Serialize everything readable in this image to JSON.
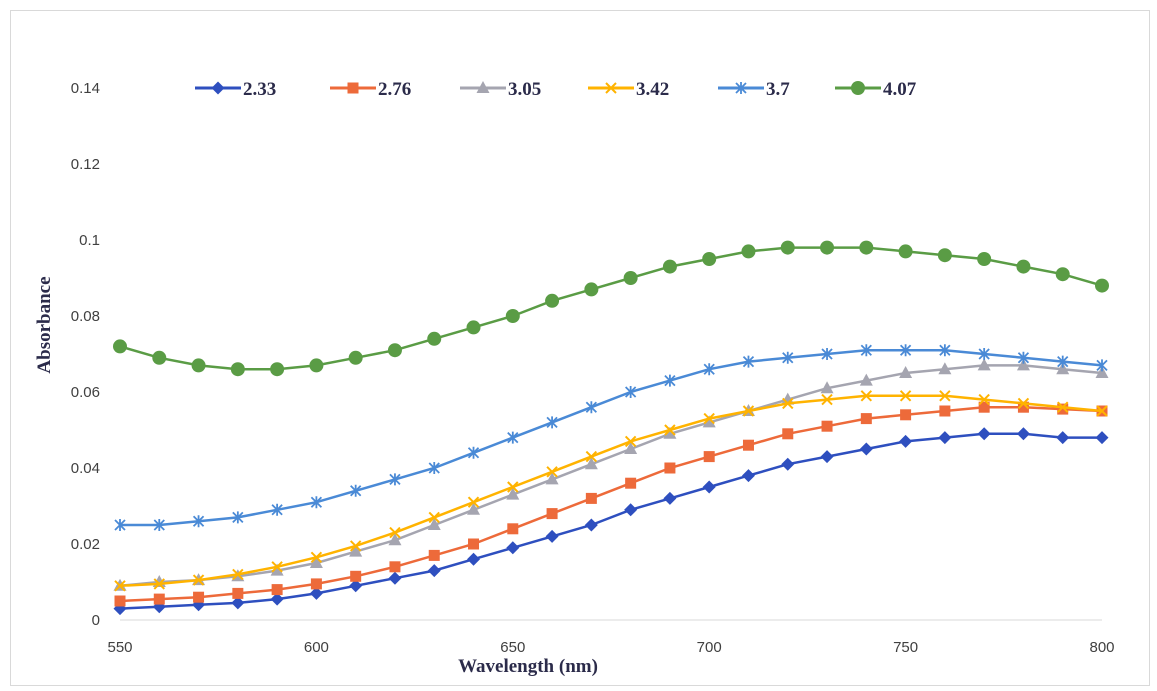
{
  "chart_data": {
    "type": "scatter",
    "title": "",
    "xlabel": "Wavelength (nm)",
    "ylabel": "Absorbance",
    "xlim": [
      550,
      800
    ],
    "ylim": [
      0,
      0.14
    ],
    "xticks": [
      550,
      600,
      650,
      700,
      750,
      800
    ],
    "xtick_labels": [
      "550",
      "600",
      "650",
      "700",
      "750",
      "800"
    ],
    "yticks": [
      0,
      0.02,
      0.04,
      0.06,
      0.08,
      0.1,
      0.12,
      0.14
    ],
    "ytick_labels": [
      "0",
      "0.02",
      "0.04",
      "0.06",
      "0.08",
      "0.1",
      "0.12",
      "0.14"
    ],
    "grid": false,
    "legend_position": "top",
    "x": [
      550,
      560,
      570,
      580,
      590,
      600,
      610,
      620,
      630,
      640,
      650,
      660,
      670,
      680,
      690,
      700,
      710,
      720,
      730,
      740,
      750,
      760,
      770,
      780,
      790,
      800
    ],
    "series": [
      {
        "name": "2.33",
        "color": "#2e4fbf",
        "marker": "diamond",
        "values": [
          0.003,
          0.0035,
          0.004,
          0.0045,
          0.0055,
          0.007,
          0.009,
          0.011,
          0.013,
          0.016,
          0.019,
          0.022,
          0.025,
          0.029,
          0.032,
          0.035,
          0.038,
          0.041,
          0.043,
          0.045,
          0.047,
          0.048,
          0.049,
          0.049,
          0.048,
          0.048
        ]
      },
      {
        "name": "2.76",
        "color": "#ed6a3a",
        "marker": "square",
        "values": [
          0.005,
          0.0055,
          0.006,
          0.007,
          0.008,
          0.0095,
          0.0115,
          0.014,
          0.017,
          0.02,
          0.024,
          0.028,
          0.032,
          0.036,
          0.04,
          0.043,
          0.046,
          0.049,
          0.051,
          0.053,
          0.054,
          0.055,
          0.056,
          0.056,
          0.0555,
          0.055
        ]
      },
      {
        "name": "3.05",
        "color": "#a5a5b0",
        "marker": "triangle",
        "values": [
          0.009,
          0.01,
          0.0105,
          0.0115,
          0.013,
          0.015,
          0.018,
          0.021,
          0.025,
          0.029,
          0.033,
          0.037,
          0.041,
          0.045,
          0.049,
          0.052,
          0.055,
          0.058,
          0.061,
          0.063,
          0.065,
          0.066,
          0.067,
          0.067,
          0.066,
          0.065
        ]
      },
      {
        "name": "3.42",
        "color": "#ffb300",
        "marker": "x",
        "values": [
          0.009,
          0.0095,
          0.0105,
          0.012,
          0.014,
          0.0165,
          0.0195,
          0.023,
          0.027,
          0.031,
          0.035,
          0.039,
          0.043,
          0.047,
          0.05,
          0.053,
          0.055,
          0.057,
          0.058,
          0.059,
          0.059,
          0.059,
          0.058,
          0.057,
          0.056,
          0.055
        ]
      },
      {
        "name": "3.7",
        "color": "#4a8ad6",
        "marker": "asterisk",
        "values": [
          0.025,
          0.025,
          0.026,
          0.027,
          0.029,
          0.031,
          0.034,
          0.037,
          0.04,
          0.044,
          0.048,
          0.052,
          0.056,
          0.06,
          0.063,
          0.066,
          0.068,
          0.069,
          0.07,
          0.071,
          0.071,
          0.071,
          0.07,
          0.069,
          0.068,
          0.067
        ]
      },
      {
        "name": "4.07",
        "color": "#5a9c45",
        "marker": "circle",
        "values": [
          0.072,
          0.069,
          0.067,
          0.066,
          0.066,
          0.067,
          0.069,
          0.071,
          0.074,
          0.077,
          0.08,
          0.084,
          0.087,
          0.09,
          0.093,
          0.095,
          0.097,
          0.098,
          0.098,
          0.098,
          0.097,
          0.096,
          0.095,
          0.093,
          0.091,
          0.088
        ]
      }
    ]
  }
}
